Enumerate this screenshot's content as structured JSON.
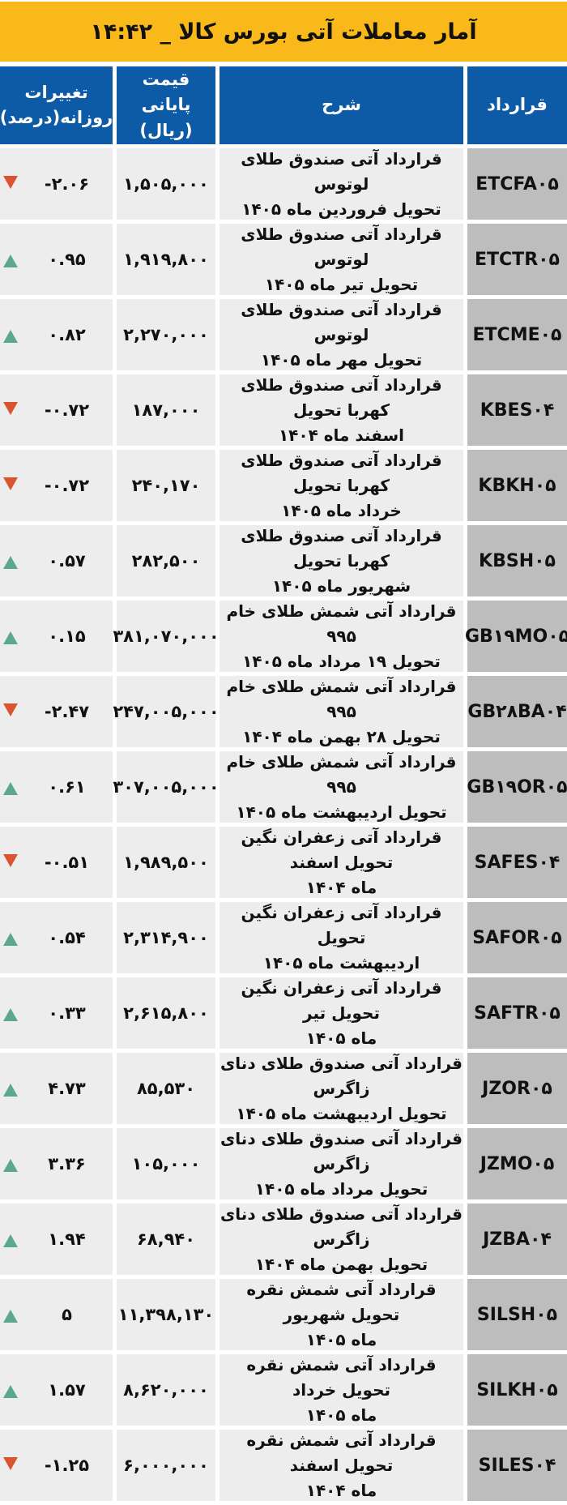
{
  "title": "آمار معاملات آتی بورس کالا _ ۱۴:۴۲",
  "headers": {
    "contract": "قرارداد",
    "description": "شرح",
    "price_line1": "قیمت پایانی",
    "price_line2": "(ریال)",
    "change_line1": "تغییرات",
    "change_line2": "روزانه(درصد)"
  },
  "colors": {
    "title_bg": "#F9B91A",
    "header_bg": "#0D5BA6",
    "up": "#5BA88C",
    "down": "#D9542F"
  },
  "rows": [
    {
      "contract": "ETCFA۰۵",
      "desc1": "قرارداد آتی صندوق طلای لوتوس",
      "desc2": "تحویل فروردین ماه ۱۴۰۵",
      "price": "۱,۵۰۵,۰۰۰",
      "change": "-۲.۰۶",
      "direction": "down"
    },
    {
      "contract": "ETCTR۰۵",
      "desc1": "قرارداد آتی صندوق طلای لوتوس",
      "desc2": "تحویل تیر ماه ۱۴۰۵",
      "price": "۱,۹۱۹,۸۰۰",
      "change": "۰.۹۵",
      "direction": "up"
    },
    {
      "contract": "ETCME۰۵",
      "desc1": "قرارداد آتی صندوق طلای لوتوس",
      "desc2": "تحویل مهر ماه ۱۴۰۵",
      "price": "۲,۲۷۰,۰۰۰",
      "change": "۰.۸۲",
      "direction": "up"
    },
    {
      "contract": "KBES۰۴",
      "desc1": "قرارداد آتی صندوق طلای کهربا تحویل",
      "desc2": "اسفند ماه ۱۴۰۴",
      "price": "۱۸۷,۰۰۰",
      "change": "-۰.۷۲",
      "direction": "down"
    },
    {
      "contract": "KBKH۰۵",
      "desc1": "قرارداد آتی صندوق طلای کهربا تحویل",
      "desc2": "خرداد ماه ۱۴۰۵",
      "price": "۲۴۰,۱۷۰",
      "change": "-۰.۷۲",
      "direction": "down"
    },
    {
      "contract": "KBSH۰۵",
      "desc1": "قرارداد آتی صندوق طلای کهربا تحویل",
      "desc2": "شهریور ماه ۱۴۰۵",
      "price": "۲۸۲,۵۰۰",
      "change": "۰.۵۷",
      "direction": "up"
    },
    {
      "contract": "GB۱۹MO۰۵",
      "desc1": "قرارداد آتی شمش طلای خام ۹۹۵",
      "desc2": "تحویل ۱۹ مرداد ماه ۱۴۰۵",
      "price": "۳۸۱,۰۷۰,۰۰۰",
      "change": "۰.۱۵",
      "direction": "up"
    },
    {
      "contract": "GB۲۸BA۰۴",
      "desc1": "قرارداد آتی شمش طلای خام ۹۹۵",
      "desc2": "تحویل ۲۸ بهمن ماه ۱۴۰۴",
      "price": "۲۴۷,۰۰۵,۰۰۰",
      "change": "-۲.۴۷",
      "direction": "down"
    },
    {
      "contract": "GB۱۹OR۰۵",
      "desc1": "قرارداد آتی شمش طلای خام ۹۹۵",
      "desc2": "تحویل اردیبهشت ماه ۱۴۰۵",
      "price": "۳۰۷,۰۰۵,۰۰۰",
      "change": "۰.۶۱",
      "direction": "up"
    },
    {
      "contract": "SAFES۰۴",
      "desc1": "قرارداد آتی زعفران نگین تحویل اسفند",
      "desc2": "ماه ۱۴۰۴",
      "price": "۱,۹۸۹,۵۰۰",
      "change": "-۰.۵۱",
      "direction": "down"
    },
    {
      "contract": "SAFOR۰۵",
      "desc1": "قرارداد آتی زعفران نگین تحویل",
      "desc2": "اردیبهشت ماه ۱۴۰۵",
      "price": "۲,۳۱۴,۹۰۰",
      "change": "۰.۵۴",
      "direction": "up"
    },
    {
      "contract": "SAFTR۰۵",
      "desc1": "قرارداد آتی زعفران نگین تحویل تیر",
      "desc2": "ماه ۱۴۰۵",
      "price": "۲,۶۱۵,۸۰۰",
      "change": "۰.۳۳",
      "direction": "up"
    },
    {
      "contract": "JZOR۰۵",
      "desc1": "قرارداد آتی صندوق طلای دنای زاگرس",
      "desc2": "تحویل اردیبهشت ماه ۱۴۰۵",
      "price": "۸۵,۵۳۰",
      "change": "۴.۷۳",
      "direction": "up"
    },
    {
      "contract": "JZMO۰۵",
      "desc1": "قرارداد آتی صندوق طلای دنای زاگرس",
      "desc2": "تحویل مرداد ماه ۱۴۰۵",
      "price": "۱۰۵,۰۰۰",
      "change": "۳.۳۶",
      "direction": "up"
    },
    {
      "contract": "JZBA۰۴",
      "desc1": "قرارداد آتی صندوق طلای دنای زاگرس",
      "desc2": "تحویل بهمن ماه ۱۴۰۴",
      "price": "۶۸,۹۴۰",
      "change": "۱.۹۴",
      "direction": "up"
    },
    {
      "contract": "SILSH۰۵",
      "desc1": "قرارداد آتی شمش نقره تحویل شهریور",
      "desc2": "ماه ۱۴۰۵",
      "price": "۱۱,۳۹۸,۱۳۰",
      "change": "۵",
      "direction": "up"
    },
    {
      "contract": "SILKH۰۵",
      "desc1": "قرارداد آتی شمش نقره تحویل خرداد",
      "desc2": "ماه ۱۴۰۵",
      "price": "۸,۶۲۰,۰۰۰",
      "change": "۱.۵۷",
      "direction": "up"
    },
    {
      "contract": "SILES۰۴",
      "desc1": "قرارداد آتی شمش نقره تحویل اسفند",
      "desc2": "ماه ۱۴۰۴",
      "price": "۶,۰۰۰,۰۰۰",
      "change": "-۱.۲۵",
      "direction": "down"
    }
  ]
}
